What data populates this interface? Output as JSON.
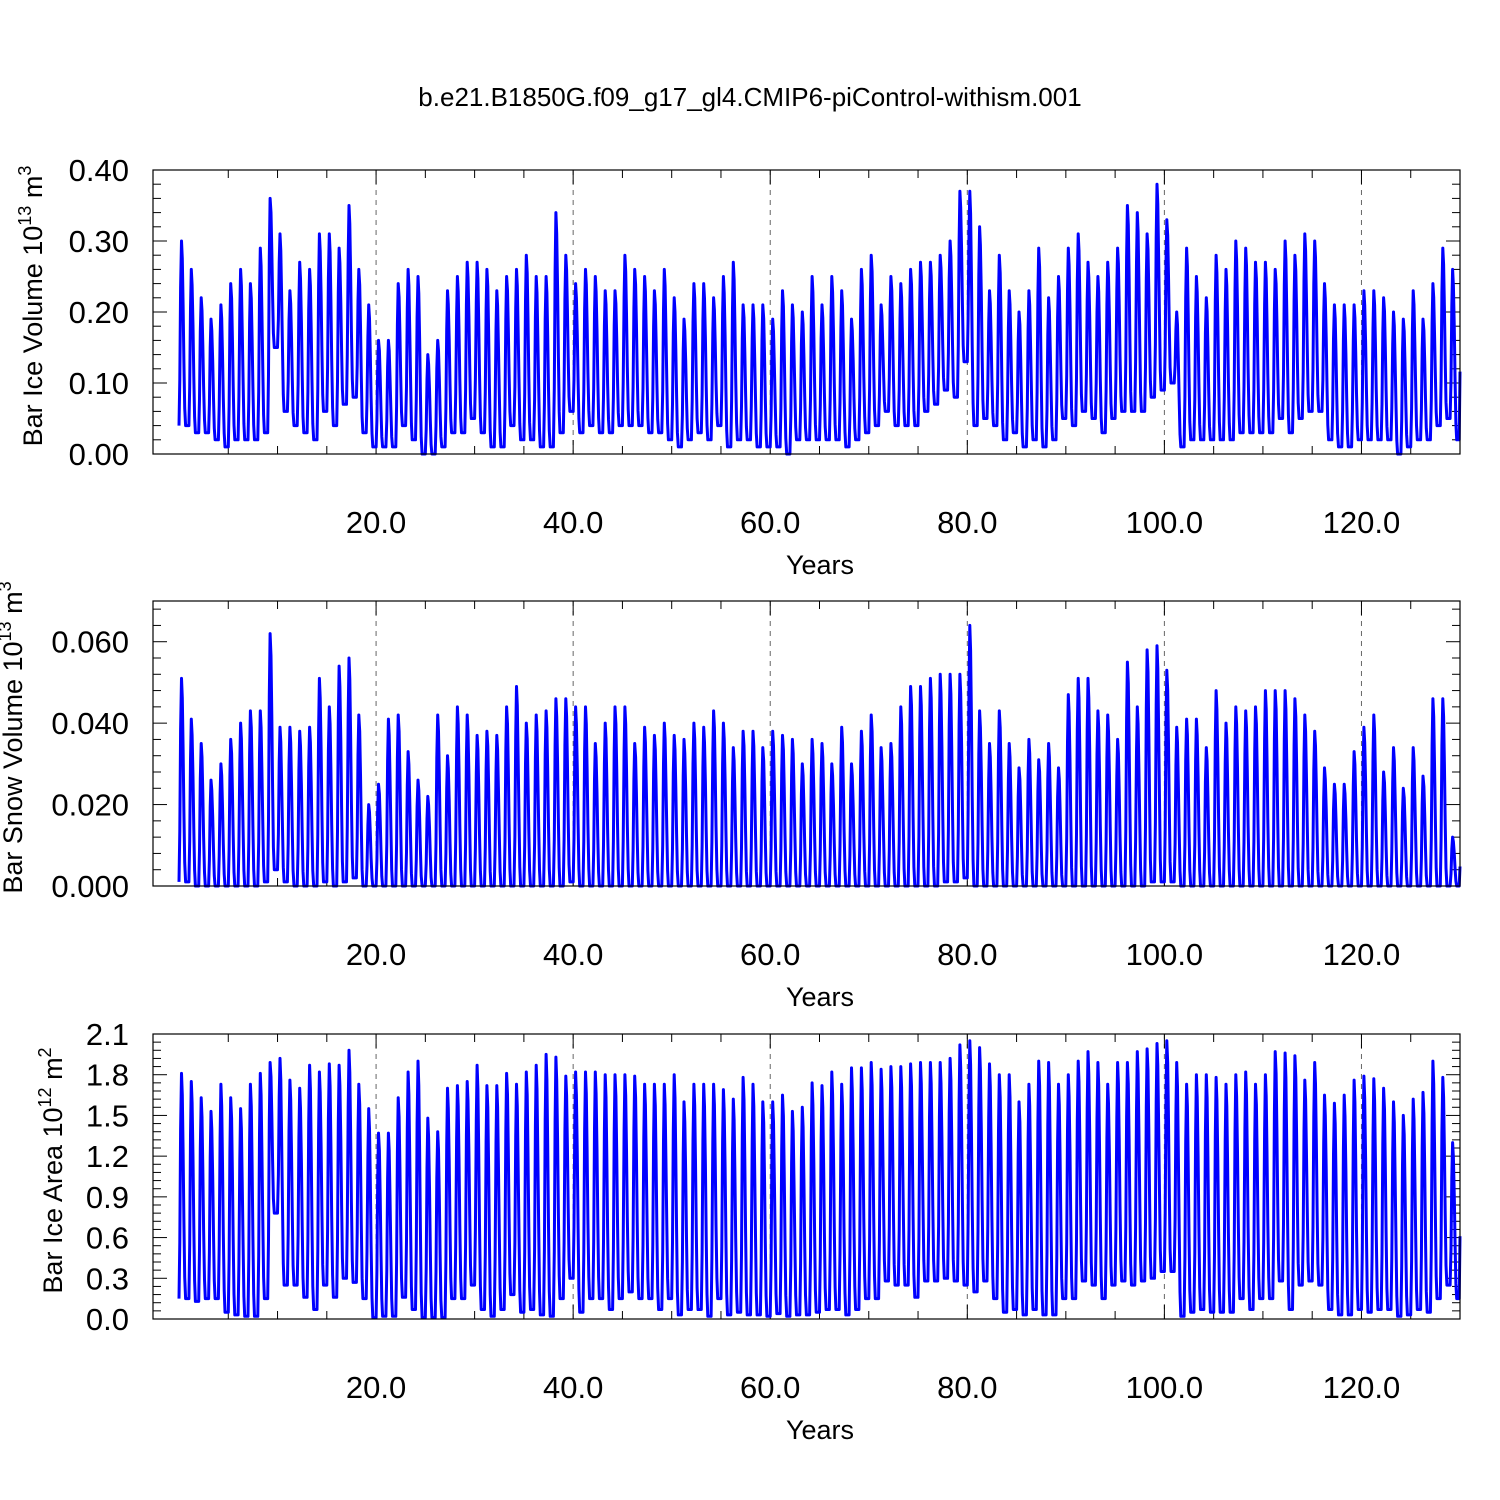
{
  "title": "b.e21.B1850G.f09_g17_gl4.CMIP6-piControl-withism.001",
  "series_color": "#0000ff",
  "chart_data": [
    {
      "type": "line",
      "ylabel": "Bar Ice Volume 10",
      "ylabel_exp": "13",
      "ylabel_unit": " m",
      "ylabel_unit_exp": "3",
      "xlabel": "Years",
      "xlim": [
        0,
        130
      ],
      "ylim": [
        0,
        0.4
      ],
      "yticks": [
        0.0,
        0.1,
        0.2,
        0.3,
        0.4
      ],
      "ytick_labels": [
        "0.00",
        "0.10",
        "0.20",
        "0.30",
        "0.40"
      ],
      "xticks": [
        20,
        40,
        60,
        80,
        100,
        120
      ],
      "xtick_labels": [
        "20.0",
        "40.0",
        "60.0",
        "80.0",
        "100.0",
        "120.0"
      ],
      "grid": "dashed vertical at x ticks",
      "series": [
        {
          "max": [
            0.3,
            0.26,
            0.22,
            0.19,
            0.21,
            0.24,
            0.26,
            0.24,
            0.29,
            0.36,
            0.31,
            0.23,
            0.27,
            0.26,
            0.31,
            0.31,
            0.29,
            0.35,
            0.26,
            0.21,
            0.16,
            0.16,
            0.24,
            0.26,
            0.25,
            0.14,
            0.16,
            0.23,
            0.25,
            0.27,
            0.27,
            0.26,
            0.23,
            0.25,
            0.26,
            0.28,
            0.25,
            0.25,
            0.34,
            0.28,
            0.24,
            0.26,
            0.25,
            0.23,
            0.23,
            0.28,
            0.26,
            0.25,
            0.23,
            0.26,
            0.22,
            0.19,
            0.24,
            0.24,
            0.22,
            0.25,
            0.27,
            0.21,
            0.21,
            0.21,
            0.19,
            0.23,
            0.21,
            0.2,
            0.25,
            0.21,
            0.25,
            0.23,
            0.19,
            0.26,
            0.28,
            0.21,
            0.25,
            0.24,
            0.26,
            0.27,
            0.27,
            0.28,
            0.3,
            0.37,
            0.37,
            0.32,
            0.23,
            0.28,
            0.23,
            0.2,
            0.23,
            0.29,
            0.22,
            0.25,
            0.29,
            0.31,
            0.27,
            0.25,
            0.27,
            0.29,
            0.35,
            0.34,
            0.31,
            0.38,
            0.33,
            0.2,
            0.29,
            0.25,
            0.22,
            0.28,
            0.26,
            0.3,
            0.29,
            0.27,
            0.27,
            0.26,
            0.3,
            0.28,
            0.31,
            0.3,
            0.24,
            0.21,
            0.21,
            0.21,
            0.23,
            0.23,
            0.22,
            0.2,
            0.19,
            0.23,
            0.19,
            0.24,
            0.29,
            0.26
          ],
          "min": [
            0.04,
            0.03,
            0.03,
            0.02,
            0.01,
            0.02,
            0.02,
            0.02,
            0.03,
            0.15,
            0.06,
            0.04,
            0.03,
            0.02,
            0.06,
            0.04,
            0.07,
            0.08,
            0.03,
            0.01,
            0.01,
            0.01,
            0.04,
            0.02,
            0.0,
            0.0,
            0.01,
            0.03,
            0.03,
            0.05,
            0.03,
            0.01,
            0.01,
            0.04,
            0.02,
            0.02,
            0.01,
            0.01,
            0.03,
            0.06,
            0.03,
            0.04,
            0.03,
            0.03,
            0.04,
            0.04,
            0.04,
            0.03,
            0.03,
            0.02,
            0.01,
            0.02,
            0.03,
            0.02,
            0.04,
            0.01,
            0.02,
            0.02,
            0.01,
            0.01,
            0.01,
            0.0,
            0.02,
            0.02,
            0.02,
            0.02,
            0.02,
            0.01,
            0.02,
            0.03,
            0.04,
            0.06,
            0.04,
            0.04,
            0.04,
            0.06,
            0.07,
            0.09,
            0.08,
            0.13,
            0.04,
            0.05,
            0.04,
            0.02,
            0.03,
            0.01,
            0.02,
            0.01,
            0.02,
            0.05,
            0.04,
            0.06,
            0.05,
            0.03,
            0.05,
            0.06,
            0.06,
            0.06,
            0.08,
            0.09,
            0.1,
            0.01,
            0.02,
            0.02,
            0.02,
            0.02,
            0.02,
            0.03,
            0.03,
            0.03,
            0.03,
            0.05,
            0.03,
            0.05,
            0.06,
            0.06,
            0.02,
            0.01,
            0.01,
            0.02,
            0.02,
            0.02,
            0.02,
            0.0,
            0.01,
            0.02,
            0.02,
            0.04,
            0.05,
            0.02
          ]
        }
      ]
    },
    {
      "type": "line",
      "ylabel": "Bar Snow Volume 10",
      "ylabel_exp": "13",
      "ylabel_unit": " m",
      "ylabel_unit_exp": "3",
      "xlabel": "Years",
      "xlim": [
        0,
        130
      ],
      "ylim": [
        0,
        0.07
      ],
      "yticks": [
        0.0,
        0.02,
        0.04,
        0.06
      ],
      "ytick_labels": [
        "0.000",
        "0.020",
        "0.040",
        "0.060"
      ],
      "xticks": [
        20,
        40,
        60,
        80,
        100,
        120
      ],
      "xtick_labels": [
        "20.0",
        "40.0",
        "60.0",
        "80.0",
        "100.0",
        "120.0"
      ],
      "grid": "dashed vertical at x ticks",
      "series": [
        {
          "max": [
            0.051,
            0.041,
            0.035,
            0.026,
            0.03,
            0.036,
            0.04,
            0.043,
            0.043,
            0.062,
            0.039,
            0.039,
            0.038,
            0.039,
            0.051,
            0.044,
            0.054,
            0.056,
            0.042,
            0.02,
            0.025,
            0.041,
            0.042,
            0.033,
            0.026,
            0.022,
            0.042,
            0.032,
            0.044,
            0.042,
            0.037,
            0.038,
            0.037,
            0.044,
            0.049,
            0.04,
            0.042,
            0.043,
            0.046,
            0.046,
            0.044,
            0.044,
            0.035,
            0.04,
            0.044,
            0.044,
            0.035,
            0.039,
            0.037,
            0.04,
            0.037,
            0.036,
            0.04,
            0.039,
            0.043,
            0.04,
            0.034,
            0.038,
            0.038,
            0.034,
            0.038,
            0.037,
            0.036,
            0.03,
            0.036,
            0.035,
            0.03,
            0.039,
            0.03,
            0.038,
            0.042,
            0.034,
            0.035,
            0.044,
            0.049,
            0.049,
            0.051,
            0.052,
            0.052,
            0.052,
            0.064,
            0.043,
            0.035,
            0.043,
            0.035,
            0.029,
            0.036,
            0.031,
            0.035,
            0.029,
            0.047,
            0.051,
            0.051,
            0.043,
            0.042,
            0.036,
            0.055,
            0.044,
            0.058,
            0.059,
            0.053,
            0.039,
            0.041,
            0.041,
            0.034,
            0.048,
            0.04,
            0.044,
            0.043,
            0.044,
            0.048,
            0.048,
            0.048,
            0.046,
            0.042,
            0.038,
            0.029,
            0.025,
            0.025,
            0.033,
            0.039,
            0.042,
            0.028,
            0.034,
            0.024,
            0.034,
            0.027,
            0.046,
            0.046,
            0.012
          ],
          "min": [
            0.001,
            0.0,
            0.0,
            0.0,
            0.0,
            0.0,
            0.0,
            0.0,
            0.001,
            0.004,
            0.001,
            0.0,
            0.0,
            0.0,
            0.001,
            0.0,
            0.001,
            0.002,
            0.0,
            0.0,
            0.0,
            0.0,
            0.0,
            0.0,
            0.0,
            0.0,
            0.0,
            0.0,
            0.0,
            0.0,
            0.0,
            0.0,
            0.0,
            0.0,
            0.0,
            0.0,
            0.0,
            0.0,
            0.0,
            0.001,
            0.0,
            0.0,
            0.0,
            0.0,
            0.0,
            0.0,
            0.0,
            0.0,
            0.0,
            0.0,
            0.0,
            0.0,
            0.0,
            0.0,
            0.0,
            0.0,
            0.0,
            0.0,
            0.0,
            0.0,
            0.0,
            0.0,
            0.0,
            0.0,
            0.0,
            0.0,
            0.0,
            0.0,
            0.0,
            0.0,
            0.0,
            0.0,
            0.0,
            0.0,
            0.0,
            0.0,
            0.0,
            0.001,
            0.001,
            0.002,
            0.0,
            0.0,
            0.0,
            0.0,
            0.0,
            0.0,
            0.0,
            0.0,
            0.0,
            0.0,
            0.0,
            0.0,
            0.0,
            0.0,
            0.0,
            0.0,
            0.0,
            0.0,
            0.001,
            0.001,
            0.001,
            0.0,
            0.0,
            0.0,
            0.0,
            0.0,
            0.0,
            0.0,
            0.0,
            0.0,
            0.0,
            0.0,
            0.0,
            0.0,
            0.0,
            0.0,
            0.0,
            0.0,
            0.0,
            0.0,
            0.0,
            0.0,
            0.0,
            0.0,
            0.0,
            0.0,
            0.0,
            0.0,
            0.0,
            0.0
          ]
        }
      ]
    },
    {
      "type": "line",
      "ylabel": "Bar Ice Area 10",
      "ylabel_exp": "12",
      "ylabel_unit": " m",
      "ylabel_unit_exp": "2",
      "xlabel": "Years",
      "xlim": [
        0,
        130
      ],
      "ylim": [
        0,
        2.1
      ],
      "yticks": [
        0.0,
        0.3,
        0.6,
        0.9,
        1.2,
        1.5,
        1.8,
        2.1
      ],
      "ytick_labels": [
        "0.0",
        "0.3",
        "0.6",
        "0.9",
        "1.2",
        "1.5",
        "1.8",
        "2.1"
      ],
      "xticks": [
        20,
        40,
        60,
        80,
        100,
        120
      ],
      "xtick_labels": [
        "20.0",
        "40.0",
        "60.0",
        "80.0",
        "100.0",
        "120.0"
      ],
      "grid": "dashed vertical at x ticks",
      "series": [
        {
          "max": [
            1.81,
            1.75,
            1.63,
            1.53,
            1.73,
            1.63,
            1.55,
            1.73,
            1.81,
            1.89,
            1.92,
            1.76,
            1.7,
            1.87,
            1.82,
            1.88,
            1.87,
            1.98,
            1.73,
            1.55,
            1.37,
            1.37,
            1.63,
            1.82,
            1.9,
            1.48,
            1.38,
            1.7,
            1.72,
            1.75,
            1.87,
            1.72,
            1.72,
            1.81,
            1.73,
            1.82,
            1.87,
            1.95,
            1.93,
            1.79,
            1.82,
            1.82,
            1.82,
            1.8,
            1.8,
            1.8,
            1.79,
            1.73,
            1.73,
            1.73,
            1.8,
            1.6,
            1.73,
            1.73,
            1.73,
            1.69,
            1.62,
            1.78,
            1.73,
            1.6,
            1.6,
            1.65,
            1.53,
            1.56,
            1.74,
            1.72,
            1.82,
            1.73,
            1.85,
            1.85,
            1.89,
            1.84,
            1.86,
            1.86,
            1.88,
            1.89,
            1.89,
            1.89,
            1.92,
            2.02,
            2.05,
            2.0,
            1.88,
            1.8,
            1.8,
            1.6,
            1.73,
            1.9,
            1.89,
            1.73,
            1.8,
            1.9,
            1.97,
            1.89,
            1.73,
            1.89,
            1.89,
            1.97,
            1.99,
            2.03,
            2.05,
            1.89,
            1.73,
            1.8,
            1.8,
            1.78,
            1.73,
            1.8,
            1.82,
            1.73,
            1.8,
            1.97,
            1.96,
            1.94,
            1.76,
            1.89,
            1.65,
            1.59,
            1.65,
            1.76,
            1.79,
            1.77,
            1.7,
            1.6,
            1.5,
            1.62,
            1.67,
            1.9,
            1.78,
            1.3
          ],
          "min": [
            0.15,
            0.13,
            0.15,
            0.15,
            0.05,
            0.03,
            0.02,
            0.02,
            0.15,
            0.78,
            0.25,
            0.25,
            0.16,
            0.07,
            0.25,
            0.16,
            0.3,
            0.27,
            0.15,
            0.01,
            0.02,
            0.02,
            0.16,
            0.07,
            0.01,
            0.01,
            0.01,
            0.15,
            0.15,
            0.25,
            0.07,
            0.02,
            0.07,
            0.18,
            0.05,
            0.07,
            0.03,
            0.02,
            0.15,
            0.3,
            0.05,
            0.15,
            0.15,
            0.07,
            0.15,
            0.2,
            0.15,
            0.15,
            0.07,
            0.15,
            0.03,
            0.07,
            0.07,
            0.02,
            0.15,
            0.03,
            0.05,
            0.03,
            0.03,
            0.02,
            0.04,
            0.02,
            0.03,
            0.03,
            0.05,
            0.07,
            0.07,
            0.03,
            0.07,
            0.15,
            0.15,
            0.28,
            0.25,
            0.25,
            0.16,
            0.28,
            0.28,
            0.3,
            0.28,
            0.25,
            0.2,
            0.28,
            0.15,
            0.05,
            0.07,
            0.03,
            0.07,
            0.03,
            0.03,
            0.15,
            0.15,
            0.28,
            0.25,
            0.15,
            0.25,
            0.28,
            0.25,
            0.28,
            0.3,
            0.35,
            0.35,
            0.02,
            0.05,
            0.07,
            0.05,
            0.05,
            0.05,
            0.15,
            0.07,
            0.15,
            0.15,
            0.28,
            0.07,
            0.25,
            0.28,
            0.25,
            0.07,
            0.03,
            0.03,
            0.07,
            0.05,
            0.07,
            0.07,
            0.02,
            0.03,
            0.07,
            0.05,
            0.15,
            0.25,
            0.15
          ]
        }
      ]
    }
  ]
}
